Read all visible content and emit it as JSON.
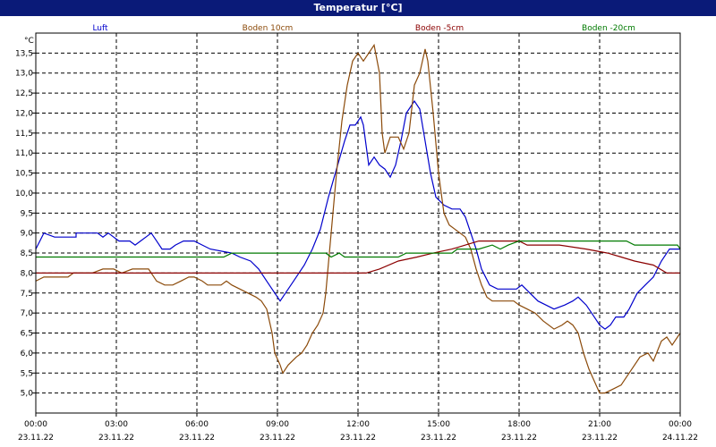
{
  "title": "Temperatur [°C]",
  "chart_data": {
    "type": "line",
    "title": "Temperatur [°C]",
    "ylabel": "°C",
    "ylim": [
      4.5,
      14.0
    ],
    "y_ticks": [
      "5,0",
      "5,5",
      "6,0",
      "6,5",
      "7,0",
      "7,5",
      "8,0",
      "8,5",
      "9,0",
      "9,5",
      "10,0",
      "10,5",
      "11,0",
      "11,5",
      "12,0",
      "12,5",
      "13,0",
      "13,5"
    ],
    "y_tick_values": [
      5.0,
      5.5,
      6.0,
      6.5,
      7.0,
      7.5,
      8.0,
      8.5,
      9.0,
      9.5,
      10.0,
      10.5,
      11.0,
      11.5,
      12.0,
      12.5,
      13.0,
      13.5
    ],
    "x_ticks": [
      {
        "time": "00:00",
        "date": "23.11.22",
        "hour": 0
      },
      {
        "time": "03:00",
        "date": "23.11.22",
        "hour": 3
      },
      {
        "time": "06:00",
        "date": "23.11.22",
        "hour": 6
      },
      {
        "time": "09:00",
        "date": "23.11.22",
        "hour": 9
      },
      {
        "time": "12:00",
        "date": "23.11.22",
        "hour": 12
      },
      {
        "time": "15:00",
        "date": "23.11.22",
        "hour": 15
      },
      {
        "time": "18:00",
        "date": "23.11.22",
        "hour": 18
      },
      {
        "time": "21:00",
        "date": "23.11.22",
        "hour": 21
      },
      {
        "time": "00:00",
        "date": "24.11.22",
        "hour": 24
      }
    ],
    "xlim_hours": [
      0,
      24
    ],
    "grid": true,
    "series": [
      {
        "name": "Luft",
        "color": "#0000cc",
        "points": [
          [
            0,
            8.6
          ],
          [
            0.3,
            9.0
          ],
          [
            0.7,
            8.9
          ],
          [
            1.5,
            8.9
          ],
          [
            1.5,
            9.0
          ],
          [
            2.3,
            9.0
          ],
          [
            2.5,
            8.9
          ],
          [
            2.7,
            9.0
          ],
          [
            2.9,
            8.9
          ],
          [
            3.1,
            8.8
          ],
          [
            3.5,
            8.8
          ],
          [
            3.7,
            8.7
          ],
          [
            3.9,
            8.8
          ],
          [
            4.1,
            8.9
          ],
          [
            4.3,
            9.0
          ],
          [
            4.5,
            8.8
          ],
          [
            4.7,
            8.6
          ],
          [
            5.0,
            8.6
          ],
          [
            5.2,
            8.7
          ],
          [
            5.5,
            8.8
          ],
          [
            5.9,
            8.8
          ],
          [
            6.2,
            8.7
          ],
          [
            6.5,
            8.6
          ],
          [
            7.3,
            8.5
          ],
          [
            7.6,
            8.4
          ],
          [
            8.0,
            8.3
          ],
          [
            8.3,
            8.1
          ],
          [
            8.6,
            7.8
          ],
          [
            8.9,
            7.5
          ],
          [
            9.1,
            7.3
          ],
          [
            9.3,
            7.5
          ],
          [
            9.6,
            7.8
          ],
          [
            9.8,
            8.0
          ],
          [
            10.0,
            8.2
          ],
          [
            10.3,
            8.6
          ],
          [
            10.6,
            9.1
          ],
          [
            10.9,
            9.9
          ],
          [
            11.2,
            10.6
          ],
          [
            11.5,
            11.3
          ],
          [
            11.7,
            11.7
          ],
          [
            11.9,
            11.7
          ],
          [
            12.1,
            11.9
          ],
          [
            12.2,
            11.7
          ],
          [
            12.3,
            11.2
          ],
          [
            12.4,
            10.7
          ],
          [
            12.6,
            10.9
          ],
          [
            12.8,
            10.7
          ],
          [
            13.0,
            10.6
          ],
          [
            13.2,
            10.4
          ],
          [
            13.4,
            10.7
          ],
          [
            13.6,
            11.3
          ],
          [
            13.8,
            12.0
          ],
          [
            14.1,
            12.3
          ],
          [
            14.3,
            12.1
          ],
          [
            14.5,
            11.3
          ],
          [
            14.7,
            10.5
          ],
          [
            14.9,
            9.9
          ],
          [
            15.2,
            9.7
          ],
          [
            15.5,
            9.6
          ],
          [
            15.8,
            9.6
          ],
          [
            16.0,
            9.4
          ],
          [
            16.2,
            9.0
          ],
          [
            16.4,
            8.6
          ],
          [
            16.6,
            8.1
          ],
          [
            16.9,
            7.7
          ],
          [
            17.2,
            7.6
          ],
          [
            17.9,
            7.6
          ],
          [
            18.1,
            7.7
          ],
          [
            18.4,
            7.5
          ],
          [
            18.7,
            7.3
          ],
          [
            19.0,
            7.2
          ],
          [
            19.3,
            7.1
          ],
          [
            19.7,
            7.2
          ],
          [
            20.0,
            7.3
          ],
          [
            20.2,
            7.4
          ],
          [
            20.5,
            7.2
          ],
          [
            20.8,
            6.9
          ],
          [
            21.0,
            6.7
          ],
          [
            21.2,
            6.6
          ],
          [
            21.4,
            6.7
          ],
          [
            21.6,
            6.9
          ],
          [
            21.9,
            6.9
          ],
          [
            22.1,
            7.1
          ],
          [
            22.4,
            7.5
          ],
          [
            22.7,
            7.7
          ],
          [
            23.0,
            7.9
          ],
          [
            23.3,
            8.3
          ],
          [
            23.6,
            8.6
          ],
          [
            24.0,
            8.6
          ]
        ]
      },
      {
        "name": "Boden 10cm",
        "color": "#8b4a0a",
        "points": [
          [
            0,
            7.8
          ],
          [
            0.3,
            7.9
          ],
          [
            1.2,
            7.9
          ],
          [
            1.4,
            8.0
          ],
          [
            2.1,
            8.0
          ],
          [
            2.5,
            8.1
          ],
          [
            2.9,
            8.1
          ],
          [
            3.2,
            8.0
          ],
          [
            3.6,
            8.1
          ],
          [
            4.2,
            8.1
          ],
          [
            4.5,
            7.8
          ],
          [
            4.8,
            7.7
          ],
          [
            5.1,
            7.7
          ],
          [
            5.4,
            7.8
          ],
          [
            5.7,
            7.9
          ],
          [
            5.9,
            7.9
          ],
          [
            6.2,
            7.8
          ],
          [
            6.4,
            7.7
          ],
          [
            6.9,
            7.7
          ],
          [
            7.1,
            7.8
          ],
          [
            7.3,
            7.7
          ],
          [
            7.6,
            7.6
          ],
          [
            7.9,
            7.5
          ],
          [
            8.2,
            7.4
          ],
          [
            8.4,
            7.3
          ],
          [
            8.6,
            7.1
          ],
          [
            8.8,
            6.5
          ],
          [
            8.9,
            6.0
          ],
          [
            9.1,
            5.7
          ],
          [
            9.2,
            5.5
          ],
          [
            9.4,
            5.7
          ],
          [
            9.7,
            5.9
          ],
          [
            9.9,
            6.0
          ],
          [
            10.1,
            6.2
          ],
          [
            10.3,
            6.5
          ],
          [
            10.5,
            6.7
          ],
          [
            10.7,
            7.0
          ],
          [
            10.8,
            7.5
          ],
          [
            11.0,
            9.0
          ],
          [
            11.2,
            10.5
          ],
          [
            11.4,
            11.8
          ],
          [
            11.6,
            12.7
          ],
          [
            11.8,
            13.3
          ],
          [
            12.0,
            13.5
          ],
          [
            12.2,
            13.3
          ],
          [
            12.4,
            13.5
          ],
          [
            12.6,
            13.7
          ],
          [
            12.8,
            13.0
          ],
          [
            12.9,
            11.5
          ],
          [
            13.0,
            11.0
          ],
          [
            13.2,
            11.4
          ],
          [
            13.5,
            11.4
          ],
          [
            13.7,
            11.1
          ],
          [
            13.9,
            11.5
          ],
          [
            14.1,
            12.7
          ],
          [
            14.3,
            13.0
          ],
          [
            14.5,
            13.6
          ],
          [
            14.6,
            13.3
          ],
          [
            14.8,
            12.0
          ],
          [
            15.0,
            10.5
          ],
          [
            15.2,
            9.5
          ],
          [
            15.4,
            9.2
          ],
          [
            15.6,
            9.1
          ],
          [
            15.8,
            9.0
          ],
          [
            16.0,
            8.9
          ],
          [
            16.2,
            8.6
          ],
          [
            16.4,
            8.1
          ],
          [
            16.6,
            7.7
          ],
          [
            16.8,
            7.4
          ],
          [
            17.0,
            7.3
          ],
          [
            17.6,
            7.3
          ],
          [
            17.8,
            7.3
          ],
          [
            18.0,
            7.2
          ],
          [
            18.3,
            7.1
          ],
          [
            18.6,
            7.0
          ],
          [
            18.9,
            6.8
          ],
          [
            19.3,
            6.6
          ],
          [
            19.6,
            6.7
          ],
          [
            19.8,
            6.8
          ],
          [
            20.0,
            6.7
          ],
          [
            20.2,
            6.5
          ],
          [
            20.4,
            6.0
          ],
          [
            20.6,
            5.6
          ],
          [
            20.8,
            5.3
          ],
          [
            21.0,
            5.0
          ],
          [
            21.2,
            5.0
          ],
          [
            21.5,
            5.1
          ],
          [
            21.8,
            5.2
          ],
          [
            22.0,
            5.4
          ],
          [
            22.2,
            5.6
          ],
          [
            22.5,
            5.9
          ],
          [
            22.8,
            6.0
          ],
          [
            23.0,
            5.8
          ],
          [
            23.3,
            6.3
          ],
          [
            23.5,
            6.4
          ],
          [
            23.7,
            6.2
          ],
          [
            23.9,
            6.4
          ],
          [
            24.0,
            6.5
          ]
        ]
      },
      {
        "name": "Boden -5cm",
        "color": "#8b0000",
        "points": [
          [
            0,
            8.0
          ],
          [
            12.3,
            8.0
          ],
          [
            12.8,
            8.1
          ],
          [
            13.5,
            8.3
          ],
          [
            14.2,
            8.4
          ],
          [
            14.8,
            8.5
          ],
          [
            15.5,
            8.6
          ],
          [
            16.0,
            8.7
          ],
          [
            16.5,
            8.8
          ],
          [
            17.0,
            8.8
          ],
          [
            18.0,
            8.8
          ],
          [
            18.3,
            8.7
          ],
          [
            19.5,
            8.7
          ],
          [
            20.5,
            8.6
          ],
          [
            21.3,
            8.5
          ],
          [
            21.8,
            8.4
          ],
          [
            22.3,
            8.3
          ],
          [
            23.0,
            8.2
          ],
          [
            23.5,
            8.0
          ],
          [
            24.0,
            8.0
          ]
        ]
      },
      {
        "name": "Boden -20cm",
        "color": "#007a00",
        "points": [
          [
            0,
            8.4
          ],
          [
            7.0,
            8.4
          ],
          [
            7.3,
            8.5
          ],
          [
            10.8,
            8.5
          ],
          [
            11.0,
            8.4
          ],
          [
            11.3,
            8.5
          ],
          [
            11.5,
            8.4
          ],
          [
            13.5,
            8.4
          ],
          [
            13.8,
            8.5
          ],
          [
            15.5,
            8.5
          ],
          [
            15.7,
            8.6
          ],
          [
            16.5,
            8.6
          ],
          [
            17.0,
            8.7
          ],
          [
            17.3,
            8.6
          ],
          [
            17.6,
            8.7
          ],
          [
            18.0,
            8.8
          ],
          [
            22.0,
            8.8
          ],
          [
            22.3,
            8.7
          ],
          [
            23.9,
            8.7
          ],
          [
            24.0,
            8.6
          ]
        ]
      }
    ]
  }
}
